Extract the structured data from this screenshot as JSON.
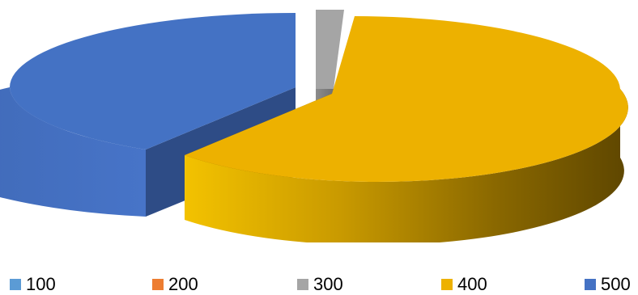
{
  "chart_data": {
    "type": "pie",
    "categories": [
      "100",
      "200",
      "300",
      "400",
      "500"
    ],
    "values": [
      0,
      0,
      2,
      55,
      43
    ],
    "colors": [
      "#5B9BD5",
      "#ED7D31",
      "#A5A5A5",
      "#EDB100",
      "#4472C4"
    ],
    "exploded": true,
    "three_d": true,
    "legend_position": "bottom",
    "title": ""
  }
}
